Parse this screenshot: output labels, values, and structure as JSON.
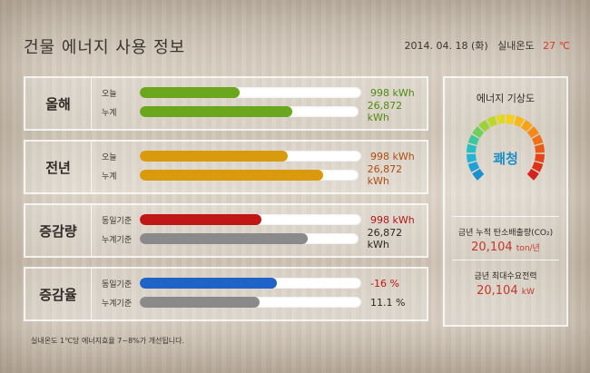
{
  "header": {
    "title": "건물 에너지 사용 정보",
    "date": "2014. 04. 18 (화)",
    "temp_label": "실내온도",
    "temp_value": "27 ℃"
  },
  "panels": [
    {
      "label": "올해",
      "rows": [
        {
          "label": "오늘",
          "value": "998 kWh",
          "fill": 0.45,
          "bar_color": "#6aa61e",
          "value_color": "#4e8a12"
        },
        {
          "label": "누계",
          "value": "26,872 kWh",
          "fill": 0.7,
          "bar_color": "#6aa61e",
          "value_color": "#4e8a12"
        }
      ]
    },
    {
      "label": "전년",
      "rows": [
        {
          "label": "오늘",
          "value": "998 kWh",
          "fill": 0.67,
          "bar_color": "#d99b0d",
          "value_color": "#b04a10"
        },
        {
          "label": "누계",
          "value": "26,872 kWh",
          "fill": 0.84,
          "bar_color": "#d99b0d",
          "value_color": "#b04a10"
        }
      ]
    },
    {
      "label": "증감량",
      "rows": [
        {
          "label": "동일기준",
          "value": "998 kWh",
          "fill": 0.55,
          "bar_color": "#c01616",
          "value_color": "#b01818"
        },
        {
          "label": "누계기준",
          "value": "26,872 kWh",
          "fill": 0.77,
          "bar_color": "#8a8a8a",
          "value_color": "#2a2622"
        }
      ]
    },
    {
      "label": "증감율",
      "rows": [
        {
          "label": "동일기준",
          "value": "-16  %",
          "fill": 0.62,
          "bar_color": "#1f63c8",
          "value_color": "#c01616"
        },
        {
          "label": "누계기준",
          "value": "11.1 %",
          "fill": 0.54,
          "bar_color": "#8a8a8a",
          "value_color": "#2a2622"
        }
      ]
    }
  ],
  "side": {
    "title": "에너지 기상도",
    "status": "쾌청",
    "gauge_level": 0.35,
    "carbon_label": "금년 누적 탄소배출량(CO₂)",
    "carbon_value": "20,104",
    "carbon_unit": "ton/년",
    "demand_label": "금년 최대수요전력",
    "demand_value": "20,104",
    "demand_unit": "kW"
  },
  "footnote": "실내온도 1℃당 에너지효율 7~8%가 개선됩니다."
}
